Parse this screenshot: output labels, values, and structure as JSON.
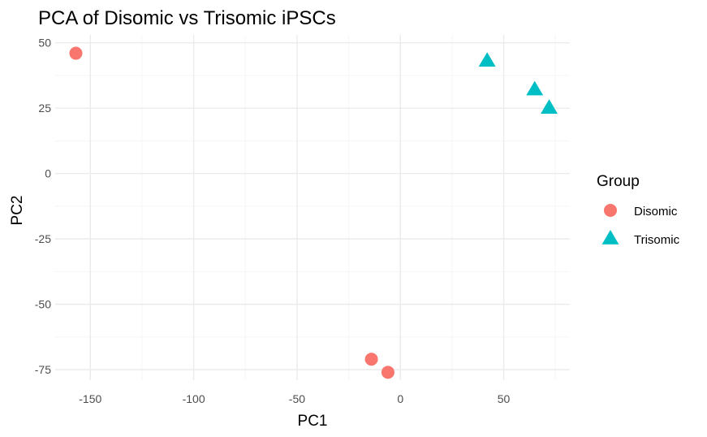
{
  "chart_data": {
    "type": "scatter",
    "title": "PCA of Disomic vs Trisomic iPSCs",
    "xlabel": "PC1",
    "ylabel": "PC2",
    "xlim": [
      -167,
      82
    ],
    "ylim": [
      -79,
      53
    ],
    "x_ticks": [
      -150,
      -100,
      -50,
      0,
      50
    ],
    "y_ticks": [
      -75,
      -50,
      -25,
      0,
      25,
      50
    ],
    "x_tick_labels": [
      "-150",
      "-100",
      "-50",
      "0",
      "50"
    ],
    "y_tick_labels": [
      "-75",
      "-50",
      "-25",
      "0",
      "25",
      "50"
    ],
    "grid": true,
    "legend": {
      "title": "Group",
      "position": "right"
    },
    "series": [
      {
        "name": "Disomic",
        "color": "#F8766D",
        "marker": "circle",
        "points": [
          {
            "x": -157,
            "y": 46
          },
          {
            "x": -14,
            "y": -71
          },
          {
            "x": -6,
            "y": -76
          }
        ]
      },
      {
        "name": "Trisomic",
        "color": "#00BFC4",
        "marker": "triangle",
        "points": [
          {
            "x": 42,
            "y": 43
          },
          {
            "x": 65,
            "y": 32
          },
          {
            "x": 72,
            "y": 25
          }
        ]
      }
    ]
  }
}
